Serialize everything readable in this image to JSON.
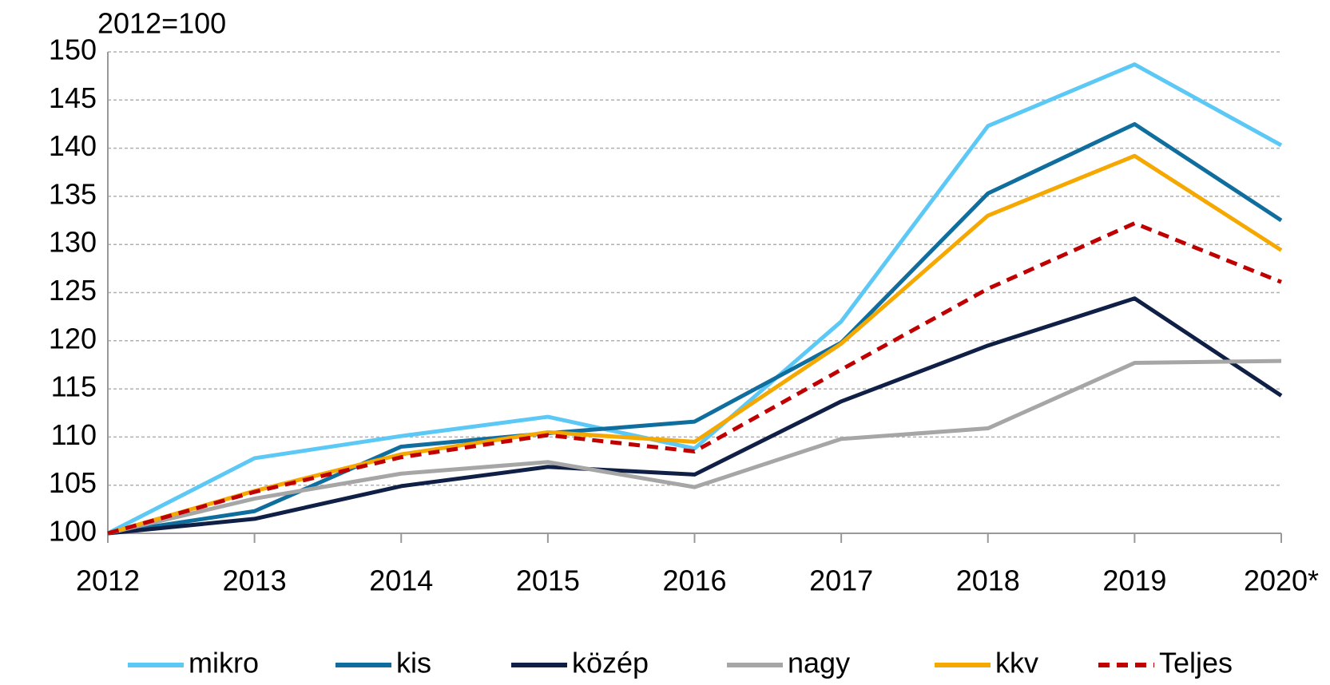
{
  "chart_data": {
    "type": "line",
    "y_axis_label": "2012=100",
    "categories": [
      "2012",
      "2013",
      "2014",
      "2015",
      "2016",
      "2017",
      "2018",
      "2019",
      "2020*"
    ],
    "series": [
      {
        "name": "mikro",
        "color": "#5bc8f5",
        "values": [
          100,
          107.8,
          110.1,
          112.1,
          108.8,
          122,
          142.3,
          148.7,
          140.3
        ]
      },
      {
        "name": "kis",
        "color": "#0f6e9e",
        "values": [
          100,
          102.3,
          109,
          110.4,
          111.6,
          119.8,
          135.3,
          142.5,
          132.5
        ]
      },
      {
        "name": "közép",
        "color": "#0f1f45",
        "values": [
          100,
          101.5,
          104.9,
          106.9,
          106.1,
          113.7,
          119.5,
          124.4,
          114.3
        ]
      },
      {
        "name": "nagy",
        "color": "#a6a6a6",
        "values": [
          100,
          103.6,
          106.2,
          107.4,
          104.8,
          109.8,
          110.9,
          117.7,
          117.9
        ]
      },
      {
        "name": "kkv",
        "color": "#f5a800",
        "values": [
          100,
          104.4,
          108.2,
          110.5,
          109.5,
          119.7,
          133,
          139.2,
          129.4
        ]
      },
      {
        "name": "Teljes",
        "color": "#c00000",
        "dash": true,
        "values": [
          100,
          104.3,
          107.9,
          110.2,
          108.5,
          117,
          125.4,
          132.2,
          126.1
        ]
      }
    ],
    "ylim": [
      100,
      150
    ],
    "yticks": [
      100,
      105,
      110,
      115,
      120,
      125,
      130,
      135,
      140,
      145,
      150
    ],
    "grid": true,
    "legend": "bottom"
  }
}
